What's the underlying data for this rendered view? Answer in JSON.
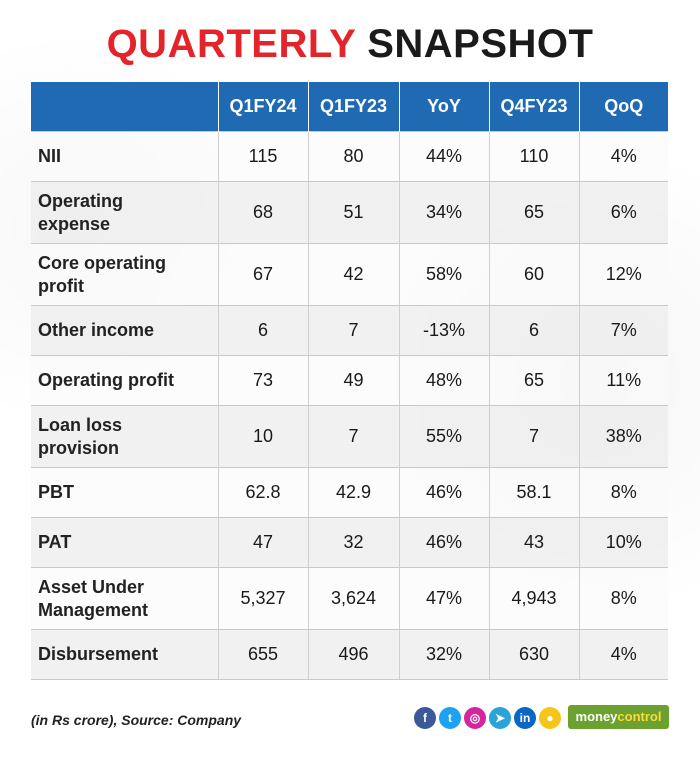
{
  "header": {
    "title_part1": "QUARTERLY",
    "title_part2": "SNAPSHOT"
  },
  "chart_data": {
    "type": "table",
    "title": "QUARTERLY SNAPSHOT",
    "columns": [
      "",
      "Q1FY24",
      "Q1FY23",
      "YoY",
      "Q4FY23",
      "QoQ"
    ],
    "rows": [
      {
        "label": "NII",
        "values": [
          "115",
          "80",
          "44%",
          "110",
          "4%"
        ]
      },
      {
        "label": "Operating expense",
        "values": [
          "68",
          "51",
          "34%",
          "65",
          "6%"
        ]
      },
      {
        "label": "Core operating profit",
        "values": [
          "67",
          "42",
          "58%",
          "60",
          "12%"
        ]
      },
      {
        "label": "Other income",
        "values": [
          "6",
          "7",
          "-13%",
          "6",
          "7%"
        ]
      },
      {
        "label": "Operating profit",
        "values": [
          "73",
          "49",
          "48%",
          "65",
          "11%"
        ]
      },
      {
        "label": "Loan loss provision",
        "values": [
          "10",
          "7",
          "55%",
          "7",
          "38%"
        ]
      },
      {
        "label": "PBT",
        "values": [
          "62.8",
          "42.9",
          "46%",
          "58.1",
          "8%"
        ]
      },
      {
        "label": "PAT",
        "values": [
          "47",
          "32",
          "46%",
          "43",
          "10%"
        ]
      },
      {
        "label": "Asset Under Management",
        "values": [
          "5,327",
          "3,624",
          "47%",
          "4,943",
          "8%"
        ]
      },
      {
        "label": "Disbursement",
        "values": [
          "655",
          "496",
          "32%",
          "630",
          "4%"
        ]
      }
    ]
  },
  "footer": {
    "source": "(in Rs crore), Source: Company",
    "brand_part1": "money",
    "brand_part2": "control",
    "social_icons": [
      {
        "name": "facebook-icon",
        "glyph": "f",
        "color": "#3b5998"
      },
      {
        "name": "twitter-icon",
        "glyph": "t",
        "color": "#1da1f2"
      },
      {
        "name": "instagram-icon",
        "glyph": "◎",
        "color": "#d6249f"
      },
      {
        "name": "telegram-icon",
        "glyph": "➤",
        "color": "#2aa3d8"
      },
      {
        "name": "linkedin-icon",
        "glyph": "in",
        "color": "#0a66c2"
      },
      {
        "name": "koo-icon",
        "glyph": "●",
        "color": "#f5c518"
      }
    ]
  }
}
